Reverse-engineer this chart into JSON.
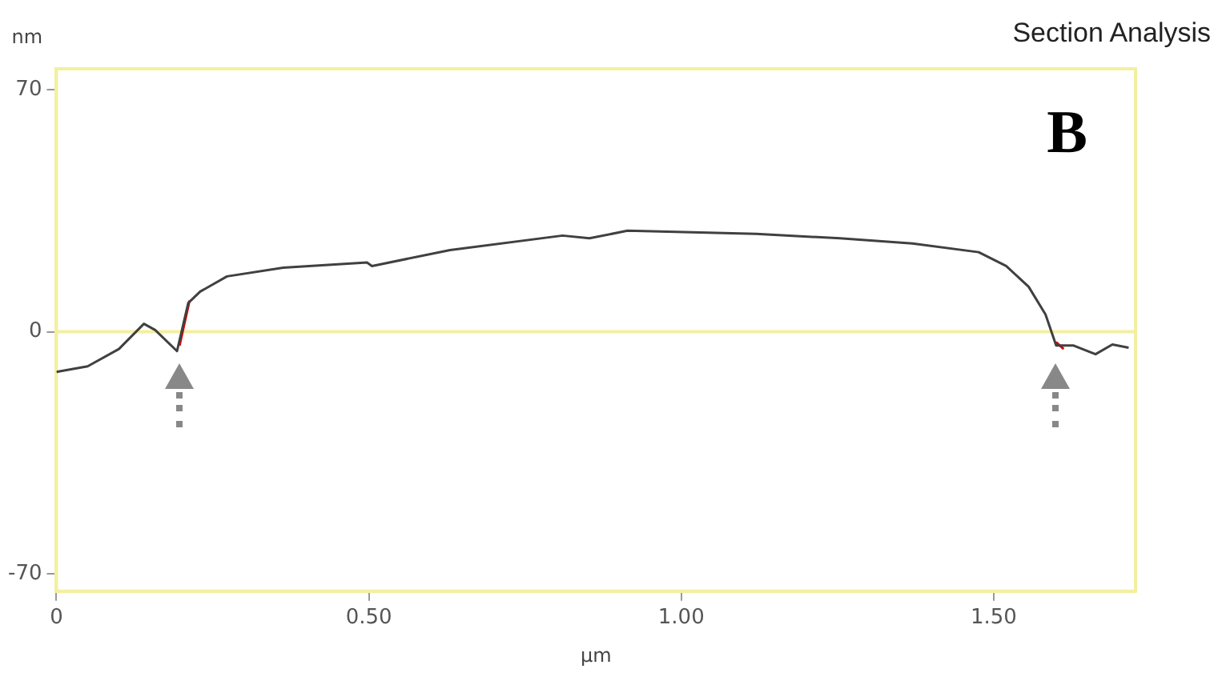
{
  "chart_data": {
    "type": "line",
    "title": "Section Analysis",
    "xlabel": "µm",
    "ylabel": "nm",
    "annotations": [
      "B"
    ],
    "xlim": [
      0,
      1.727
    ],
    "ylim": [
      -75,
      76
    ],
    "xticks": [
      0,
      {
        "value": 0.5,
        "label": "0.50"
      },
      {
        "value": 1,
        "label": "1.00"
      },
      {
        "value": 1.5,
        "label": "1.50"
      }
    ],
    "yticks": [
      -70,
      0,
      70
    ],
    "grid": false,
    "legend": false,
    "marker": "none",
    "line_style": "solid",
    "ref_lines": [
      {
        "axis": "y",
        "value": 0,
        "color": "#f2f0a0"
      }
    ],
    "series": [
      {
        "color": "#404040",
        "x": [
          0,
          0.05,
          0.1,
          0.14,
          0.158,
          0.193,
          0.211,
          0.23,
          0.273,
          0.363,
          0.497,
          0.505,
          0.63,
          0.81,
          0.853,
          0.914,
          1.12,
          1.254,
          1.37,
          1.476,
          1.52,
          1.556,
          1.583,
          1.6,
          1.628,
          1.663,
          1.69,
          1.716
        ],
        "values": [
          -11.6,
          -10,
          -5,
          2.3,
          0.5,
          -5.6,
          8.3,
          11.6,
          16,
          18.5,
          20,
          19,
          23.6,
          27.8,
          27,
          29.2,
          28.3,
          27,
          25.5,
          23,
          19,
          13,
          5,
          -4,
          -4,
          -6.5,
          -3.7,
          -4.6
        ]
      },
      {
        "color": "#e00000",
        "x": [
          0.197,
          0.213,
          0.214,
          1.6,
          1.612
        ],
        "values": [
          -4,
          9,
          null,
          -3,
          -5
        ]
      }
    ]
  }
}
